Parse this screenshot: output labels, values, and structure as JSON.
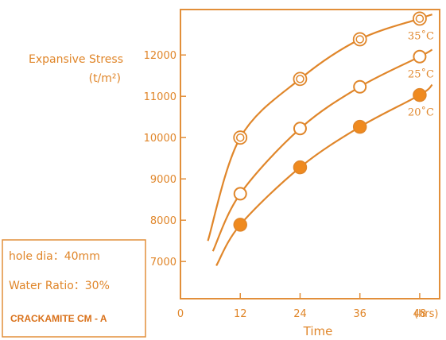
{
  "chart_data": {
    "type": "line",
    "ylabel_line1": "Expansive Stress",
    "ylabel_line2": "(t/m²)",
    "xlabel": "Time",
    "x_ticks": [
      "0",
      "12",
      "24",
      "36",
      "48"
    ],
    "x_unit": "(hrs)",
    "y_ticks": [
      "7000",
      "8000",
      "9000",
      "10000",
      "11000",
      "12000"
    ],
    "xlim": [
      0,
      52
    ],
    "ylim": [
      6100,
      13100
    ],
    "grid": false,
    "series": [
      {
        "name": "35˚C",
        "marker": "double-ring",
        "x": [
          12,
          24,
          36,
          48
        ],
        "y": [
          10000,
          11420,
          12380,
          12880
        ],
        "curve_start": [
          5.5,
          7500
        ],
        "curve_end": [
          50.5,
          12980
        ]
      },
      {
        "name": "25˚C",
        "marker": "open",
        "x": [
          12,
          24,
          36,
          48
        ],
        "y": [
          8640,
          10220,
          11230,
          11960
        ],
        "curve_start": [
          6.5,
          7250
        ],
        "curve_end": [
          50.5,
          12130
        ]
      },
      {
        "name": "20˚C",
        "marker": "filled",
        "x": [
          12,
          24,
          36,
          48
        ],
        "y": [
          7890,
          9280,
          10260,
          11030
        ],
        "curve_start": [
          7.2,
          6900
        ],
        "curve_end": [
          50.5,
          11280
        ]
      }
    ]
  },
  "legend_box": {
    "hole_dia": "hole dia：40mm",
    "water_ratio": "Water Ratio：30%",
    "product": "CRACKAMITE CM - A"
  },
  "colors": {
    "line": "#e0862a",
    "frame": "#e28f3a",
    "text": "#e0862a",
    "fill_marker": "#ef8a1f"
  }
}
